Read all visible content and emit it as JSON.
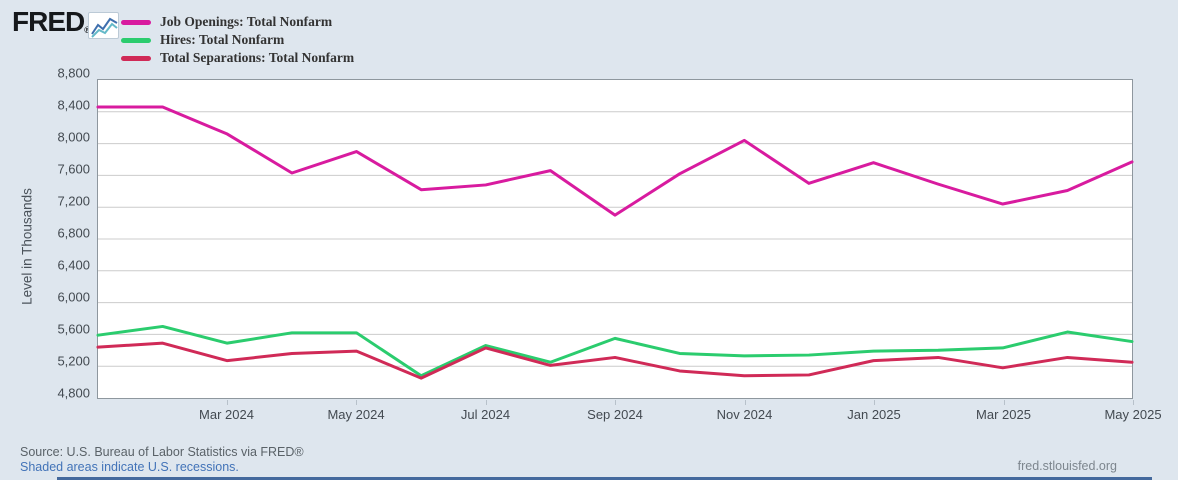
{
  "header": {
    "logo_text": "FRED",
    "registered_mark": "®",
    "sparkline_icon": "fred-sparkline-icon"
  },
  "legend": {
    "items": [
      {
        "label": "Job Openings: Total Nonfarm",
        "color": "#d81b9f"
      },
      {
        "label": "Hires: Total Nonfarm",
        "color": "#2bcc6e"
      },
      {
        "label": "Total Separations: Total Nonfarm",
        "color": "#d02a57"
      }
    ]
  },
  "chart_data": {
    "type": "line",
    "title": "",
    "xlabel": "",
    "ylabel": "Level in Thousands",
    "ylim": [
      4800,
      8800
    ],
    "y_tick_step": 400,
    "y_tick_labels": [
      "8,800",
      "8,400",
      "8,000",
      "7,600",
      "7,200",
      "6,800",
      "6,400",
      "6,000",
      "5,600",
      "5,200",
      "4,800"
    ],
    "grid": "horizontal-only",
    "legend_position": "top-left",
    "categories": [
      "Jan 2024",
      "Feb 2024",
      "Mar 2024",
      "Apr 2024",
      "May 2024",
      "Jun 2024",
      "Jul 2024",
      "Aug 2024",
      "Sep 2024",
      "Oct 2024",
      "Nov 2024",
      "Dec 2024",
      "Jan 2025",
      "Feb 2025",
      "Mar 2025",
      "Apr 2025",
      "May 2025"
    ],
    "x_tick_label_indices": [
      2,
      4,
      6,
      8,
      10,
      12,
      14,
      16
    ],
    "x_tick_labels": [
      "Mar 2024",
      "May 2024",
      "Jul 2024",
      "Sep 2024",
      "Nov 2024",
      "Jan 2025",
      "Mar 2025",
      "May 2025"
    ],
    "series": [
      {
        "name": "Job Openings: Total Nonfarm",
        "color": "#d81b9f",
        "values": [
          8460,
          8460,
          8120,
          7630,
          7900,
          7420,
          7480,
          7660,
          7100,
          7620,
          8040,
          7500,
          7760,
          7490,
          7240,
          7410,
          7770
        ]
      },
      {
        "name": "Hires: Total Nonfarm",
        "color": "#2bcc6e",
        "values": [
          5590,
          5700,
          5490,
          5620,
          5620,
          5080,
          5460,
          5250,
          5550,
          5360,
          5330,
          5340,
          5390,
          5400,
          5430,
          5630,
          5510
        ]
      },
      {
        "name": "Total Separations: Total Nonfarm",
        "color": "#d02a57",
        "values": [
          5440,
          5490,
          5270,
          5360,
          5390,
          5050,
          5430,
          5210,
          5310,
          5140,
          5080,
          5090,
          5270,
          5310,
          5180,
          5310,
          5250
        ]
      }
    ]
  },
  "footer": {
    "source": "Source: U.S. Bureau of Labor Statistics via FRED®",
    "recessions_note": "Shaded areas indicate U.S. recessions.",
    "site": "fred.stlouisfed.org"
  },
  "style": {
    "background": "#dee6ee",
    "plot_background": "#ffffff",
    "plot_border": "#8e979e",
    "gridline_color": "#cccccc",
    "axis_text_color": "#434a51",
    "line_width": 3
  }
}
